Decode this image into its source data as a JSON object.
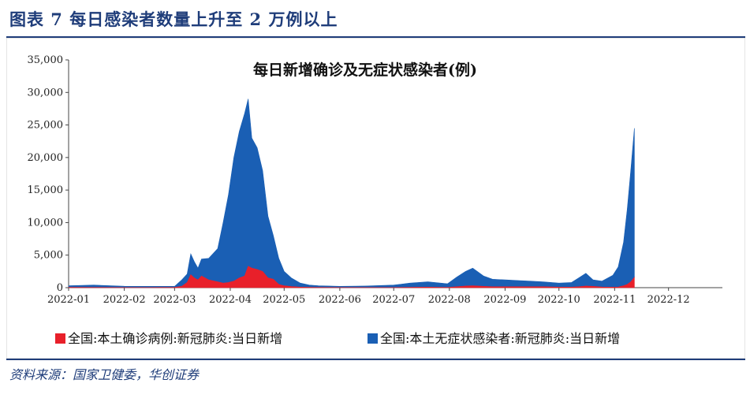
{
  "figure": {
    "title": "图表 7   每日感染者数量上升至 2 万例以上",
    "source": "资料来源：国家卫健委，华创证券"
  },
  "colors": {
    "accent": "#1f3d7a",
    "series_confirmed": "#e8202a",
    "series_asymptomatic": "#1a5fb4"
  },
  "chart_data": {
    "type": "area",
    "title": "每日新增确诊及无症状感染者(例)",
    "xlabel": "",
    "ylabel": "",
    "x_ticks": [
      "2022-01",
      "2022-02",
      "2022-03",
      "2022-04",
      "2022-05",
      "2022-06",
      "2022-07",
      "2022-08",
      "2022-09",
      "2022-10",
      "2022-11",
      "2022-12"
    ],
    "y_ticks": [
      "0",
      "5,000",
      "10,000",
      "15,000",
      "20,000",
      "25,000",
      "30,000",
      "35,000"
    ],
    "ylim": [
      0,
      35000
    ],
    "xlim": [
      "2022-01-01",
      "2022-12-31"
    ],
    "stacked": true,
    "grid": false,
    "legend_position": "bottom",
    "x": [
      "2022-01-01",
      "2022-01-15",
      "2022-02-01",
      "2022-02-15",
      "2022-03-01",
      "2022-03-05",
      "2022-03-08",
      "2022-03-10",
      "2022-03-12",
      "2022-03-14",
      "2022-03-16",
      "2022-03-20",
      "2022-03-25",
      "2022-03-28",
      "2022-03-31",
      "2022-04-03",
      "2022-04-06",
      "2022-04-09",
      "2022-04-11",
      "2022-04-13",
      "2022-04-16",
      "2022-04-19",
      "2022-04-22",
      "2022-04-25",
      "2022-04-28",
      "2022-05-01",
      "2022-05-05",
      "2022-05-10",
      "2022-05-15",
      "2022-05-20",
      "2022-06-01",
      "2022-06-15",
      "2022-07-01",
      "2022-07-10",
      "2022-07-20",
      "2022-07-31",
      "2022-08-05",
      "2022-08-10",
      "2022-08-14",
      "2022-08-20",
      "2022-08-25",
      "2022-09-01",
      "2022-09-08",
      "2022-09-15",
      "2022-09-22",
      "2022-10-01",
      "2022-10-08",
      "2022-10-12",
      "2022-10-16",
      "2022-10-20",
      "2022-10-25",
      "2022-10-31",
      "2022-11-03",
      "2022-11-06",
      "2022-11-08",
      "2022-11-10",
      "2022-11-12"
    ],
    "series": [
      {
        "name": "全国:本土确诊病例:新冠肺炎:当日新增",
        "values": [
          60,
          40,
          20,
          20,
          60,
          200,
          800,
          2000,
          1500,
          1200,
          1800,
          1200,
          900,
          700,
          800,
          1000,
          1500,
          1800,
          3300,
          3000,
          2800,
          2500,
          1500,
          1300,
          500,
          300,
          180,
          80,
          60,
          40,
          20,
          20,
          30,
          60,
          80,
          40,
          150,
          250,
          300,
          200,
          150,
          150,
          150,
          150,
          150,
          80,
          80,
          150,
          250,
          200,
          100,
          80,
          100,
          300,
          500,
          900,
          1600
        ]
      },
      {
        "name": "全国:本土无症状感染者:新冠肺炎:当日新增",
        "values": [
          240,
          360,
          200,
          180,
          140,
          1000,
          1300,
          3200,
          2500,
          1800,
          2600,
          3300,
          5100,
          9300,
          13500,
          19000,
          22500,
          25000,
          25700,
          20000,
          18700,
          15500,
          9500,
          6700,
          4000,
          2200,
          1320,
          620,
          340,
          260,
          180,
          230,
          370,
          640,
          820,
          560,
          1450,
          2250,
          2700,
          1600,
          1150,
          1050,
          950,
          850,
          750,
          620,
          720,
          1350,
          1950,
          1000,
          900,
          1820,
          3100,
          6700,
          11500,
          17100,
          22900
        ]
      }
    ]
  }
}
